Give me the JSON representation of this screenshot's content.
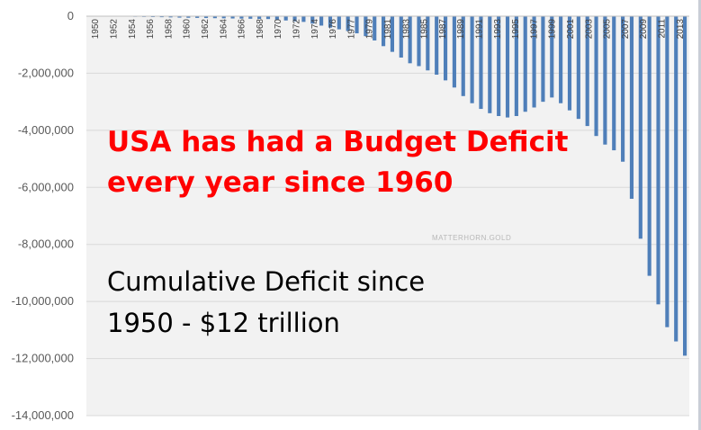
{
  "chart_data": {
    "type": "bar",
    "ylim": [
      -14000000,
      0
    ],
    "y_ticks": [
      0,
      -2000000,
      -4000000,
      -6000000,
      -8000000,
      -10000000,
      -12000000,
      -14000000
    ],
    "y_tick_labels": [
      "0",
      "-2,000,000",
      "-4,000,000",
      "-6,000,000",
      "-8,000,000",
      "-10,000,000",
      "-12,000,000",
      "-14,000,000"
    ],
    "x_tick_labels": [
      "1950",
      "1952",
      "1954",
      "1956",
      "1958",
      "1960",
      "1962",
      "1964",
      "1966",
      "1968",
      "1970",
      "1972",
      "1974",
      "1976",
      "1977",
      "1979",
      "1981",
      "1983",
      "1985",
      "1987",
      "1989",
      "1991",
      "1993",
      "1995",
      "1997",
      "1999",
      "2001",
      "2003",
      "2005",
      "2007",
      "2009",
      "2011",
      "2013"
    ],
    "bar_color": "#4f7fb9",
    "grid": true,
    "values": [
      0,
      -5000,
      -8000,
      -12000,
      -15000,
      -20000,
      -25000,
      -30000,
      -35000,
      -42000,
      -50000,
      -55000,
      -60000,
      -65000,
      -70000,
      -75000,
      -80000,
      -85000,
      -90000,
      -95000,
      -100000,
      -120000,
      -150000,
      -180000,
      -200000,
      -260000,
      -330000,
      -400000,
      -460000,
      -520000,
      -600000,
      -700000,
      -850000,
      -1050000,
      -1250000,
      -1450000,
      -1650000,
      -1750000,
      -1900000,
      -2050000,
      -2250000,
      -2500000,
      -2800000,
      -3050000,
      -3250000,
      -3400000,
      -3500000,
      -3550000,
      -3500000,
      -3350000,
      -3200000,
      -3000000,
      -2850000,
      -3050000,
      -3300000,
      -3600000,
      -3850000,
      -4200000,
      -4500000,
      -4700000,
      -5100000,
      -6400000,
      -7800000,
      -9100000,
      -10100000,
      -10900000,
      -11400000,
      -11900000
    ]
  },
  "annotations": {
    "headline_line1": "USA has had a Budget Deficit",
    "headline_line2": "every year since 1960",
    "subline_line1": "Cumulative Deficit since",
    "subline_line2": "1950 - $12 trillion",
    "watermark": "MATTERHORN.GOLD"
  }
}
